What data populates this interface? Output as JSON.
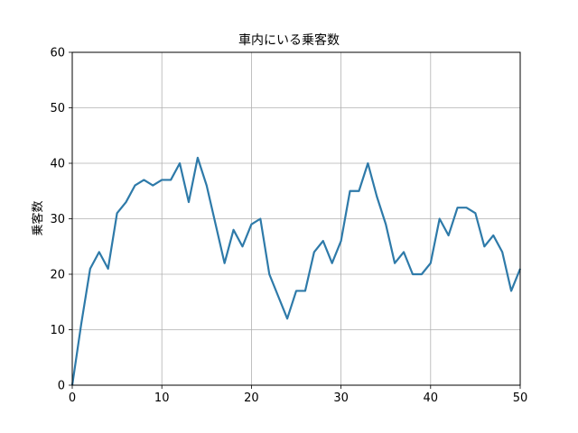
{
  "chart_data": {
    "type": "line",
    "title": "車内にいる乗客数",
    "xlabel": "",
    "ylabel": "乗客数",
    "xlim": [
      0,
      50
    ],
    "ylim": [
      0,
      60
    ],
    "xticks": [
      0,
      10,
      20,
      30,
      40,
      50
    ],
    "yticks": [
      0,
      10,
      20,
      30,
      40,
      50,
      60
    ],
    "grid": true,
    "series": [
      {
        "color": "#2e7aa9",
        "x": [
          0,
          1,
          2,
          3,
          4,
          5,
          6,
          7,
          8,
          9,
          10,
          11,
          12,
          13,
          14,
          15,
          16,
          17,
          18,
          19,
          20,
          21,
          22,
          23,
          24,
          25,
          26,
          27,
          28,
          29,
          30,
          31,
          32,
          33,
          34,
          35,
          36,
          37,
          38,
          39,
          40,
          41,
          42,
          43,
          44,
          45,
          46,
          47,
          48,
          49,
          50
        ],
        "y": [
          0,
          11,
          21,
          24,
          21,
          31,
          33,
          36,
          37,
          36,
          37,
          37,
          40,
          33,
          41,
          36,
          29,
          22,
          28,
          25,
          29,
          30,
          20,
          16,
          12,
          17,
          17,
          24,
          26,
          22,
          26,
          35,
          35,
          40,
          34,
          29,
          22,
          24,
          20,
          20,
          22,
          30,
          27,
          32,
          32,
          31,
          25,
          27,
          24,
          17,
          21
        ]
      }
    ]
  }
}
